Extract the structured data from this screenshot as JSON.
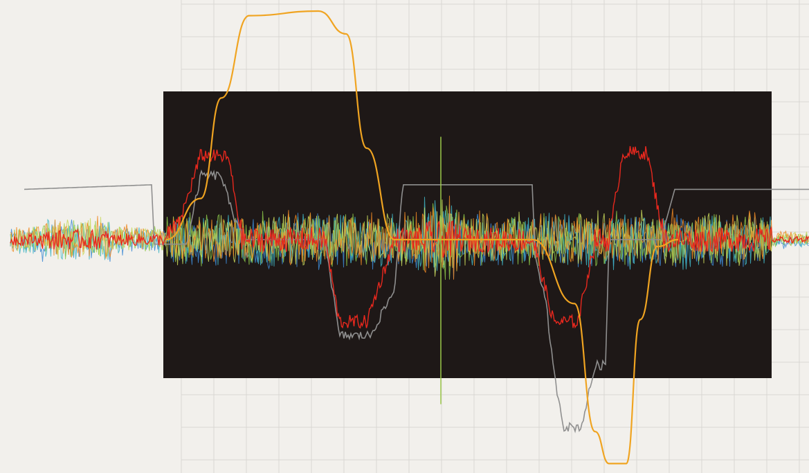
{
  "chart_data": {
    "type": "line",
    "title": "",
    "xlabel": "",
    "ylabel": "",
    "xlim": [
      0,
      1169
    ],
    "ylim": [
      -1,
      1
    ],
    "grid": true,
    "legend": "none",
    "colors": {
      "background": "#f2f0ec",
      "grid": "#d9d7d3",
      "panel": "#1e1817",
      "orange": "#f0a421",
      "red": "#e8281e",
      "gray": "#8f8f8f",
      "noise": [
        "#3d8ad4",
        "#41b5c4",
        "#8cc84a",
        "#c9d85a",
        "#f08a24"
      ]
    },
    "series": [
      {
        "kind": "orange-envelope",
        "points": [
          [
            240,
            0.0
          ],
          [
            290,
            0.18
          ],
          [
            320,
            0.62
          ],
          [
            360,
            0.98
          ],
          [
            460,
            1.0
          ],
          [
            500,
            0.9
          ],
          [
            530,
            0.4
          ],
          [
            570,
            0.0
          ],
          [
            770,
            0.0
          ],
          [
            830,
            -0.28
          ],
          [
            860,
            -0.84
          ],
          [
            880,
            -0.98
          ],
          [
            905,
            -0.98
          ],
          [
            925,
            -0.35
          ],
          [
            950,
            -0.03
          ],
          [
            980,
            0.0
          ]
        ]
      },
      {
        "kind": "red-response",
        "points": [
          [
            240,
            0.0
          ],
          [
            260,
            0.08
          ],
          [
            290,
            0.37
          ],
          [
            330,
            0.36
          ],
          [
            350,
            0.0
          ],
          [
            470,
            0.0
          ],
          [
            490,
            -0.36
          ],
          [
            530,
            -0.36
          ],
          [
            570,
            0.0
          ],
          [
            770,
            0.0
          ],
          [
            800,
            -0.36
          ],
          [
            835,
            -0.36
          ],
          [
            860,
            0.0
          ],
          [
            880,
            0.0
          ],
          [
            900,
            0.38
          ],
          [
            935,
            0.38
          ],
          [
            960,
            0.0
          ],
          [
            980,
            0.0
          ]
        ]
      },
      {
        "kind": "gray-trace",
        "points": [
          [
            35,
            0.22
          ],
          [
            220,
            0.24
          ],
          [
            222,
            -0.02
          ],
          [
            240,
            -0.02
          ],
          [
            270,
            -0.02
          ],
          [
            290,
            0.28
          ],
          [
            320,
            0.28
          ],
          [
            335,
            0.12
          ],
          [
            355,
            0.0
          ],
          [
            470,
            0.0
          ],
          [
            490,
            -0.42
          ],
          [
            535,
            -0.42
          ],
          [
            570,
            -0.22
          ],
          [
            582,
            0.24
          ],
          [
            770,
            0.24
          ],
          [
            772,
            -0.05
          ],
          [
            790,
            -0.3
          ],
          [
            800,
            -0.58
          ],
          [
            815,
            -0.82
          ],
          [
            840,
            -0.82
          ],
          [
            860,
            -0.55
          ],
          [
            875,
            -0.55
          ],
          [
            880,
            0.0
          ],
          [
            955,
            0.0
          ],
          [
            975,
            0.22
          ],
          [
            980,
            0.22
          ],
          [
            1169,
            0.22
          ]
        ]
      }
    ],
    "noise_bands": [
      {
        "from": 15,
        "to": 240,
        "amplitude": 0.06
      },
      {
        "from": 240,
        "to": 1115,
        "amplitude": 0.12
      },
      {
        "from": 1115,
        "to": 1169,
        "amplitude": 0.03
      }
    ],
    "spike": {
      "x": 637,
      "top": 0.45,
      "bottom": -0.72
    }
  }
}
